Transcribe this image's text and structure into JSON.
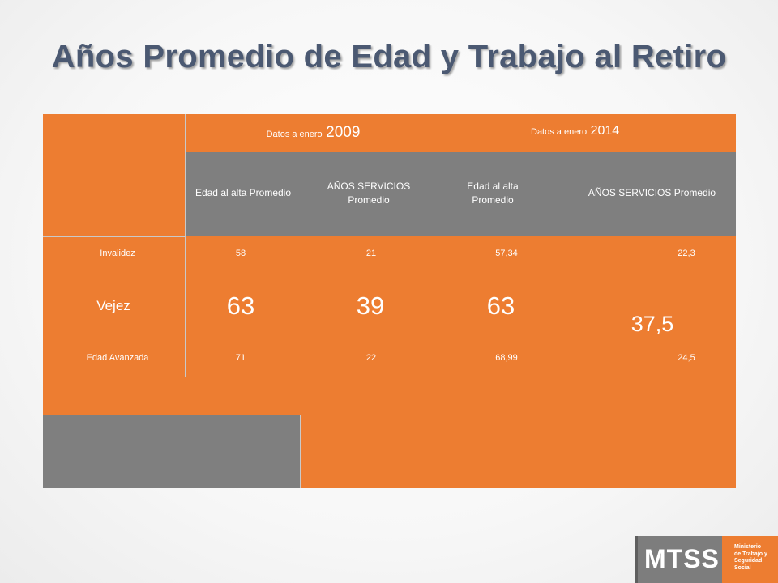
{
  "title": "Años Promedio de Edad y Trabajo al Retiro",
  "table": {
    "group_headers": [
      {
        "prefix": "Datos a enero",
        "year": "2009"
      },
      {
        "prefix": "Datos a enero",
        "year": "2014"
      }
    ],
    "sub_headers": [
      "Edad al alta Promedio",
      "AÑOS SERVICIOS Promedio",
      "Edad al alta Promedio",
      "AÑOS SERVICIOS  Promedio"
    ],
    "rows": [
      {
        "label": "Invalidez",
        "values": [
          "58",
          "21",
          "57,34",
          "22,3"
        ]
      },
      {
        "label": "Vejez",
        "values": [
          "63",
          "39",
          "63",
          "37,5"
        ]
      },
      {
        "label": "Edad Avanzada",
        "values": [
          "71",
          "22",
          "68,99",
          "24,5"
        ]
      }
    ]
  },
  "logo": {
    "acronym": "MTSS",
    "lines": [
      "Ministerio",
      "de Trabajo y",
      "Seguridad",
      "Social"
    ]
  },
  "colors": {
    "title": "#4b5972",
    "accent_orange": "#ed7d31",
    "header_gray": "#7f7f7f"
  }
}
